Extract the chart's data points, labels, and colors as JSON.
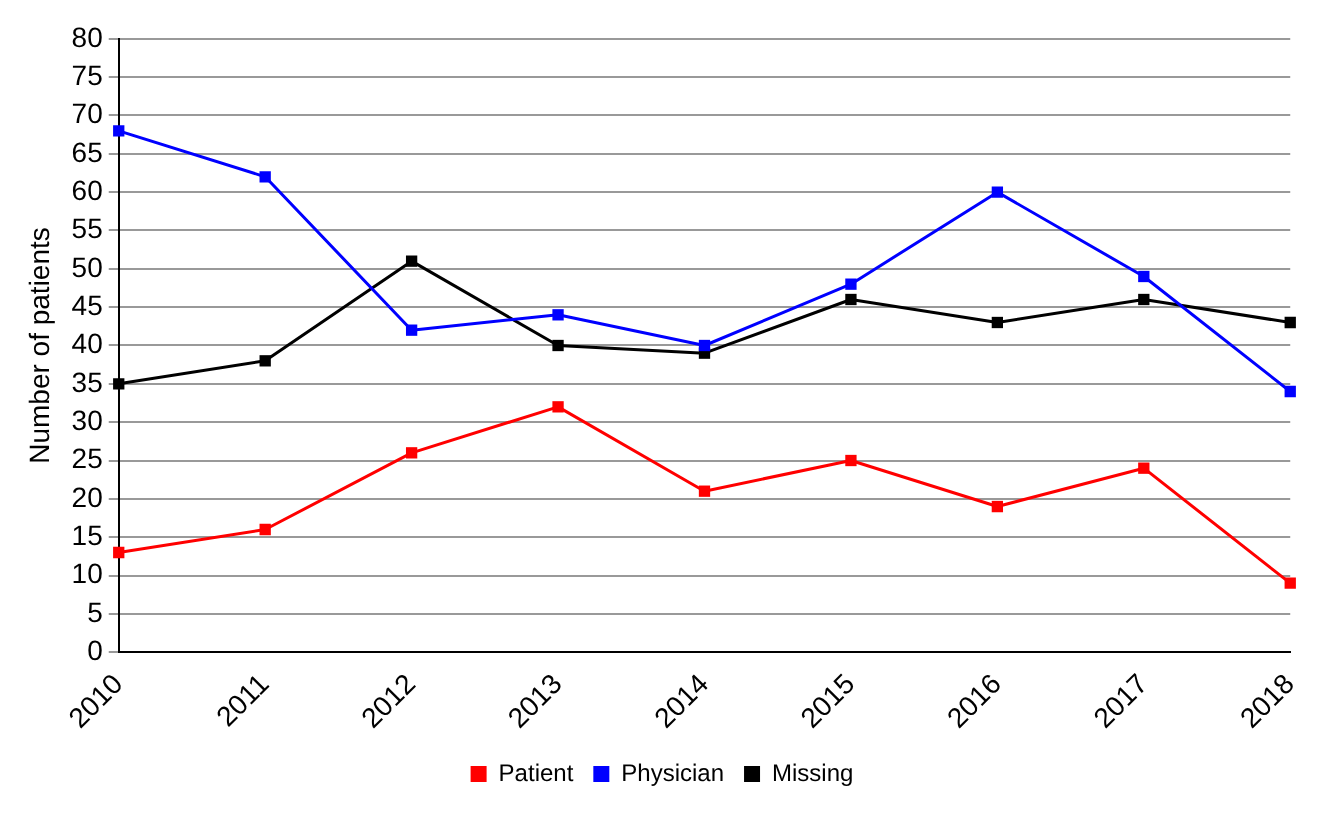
{
  "chart_data": {
    "type": "line",
    "ylabel": "Number of patients",
    "categories": [
      "2010",
      "2011",
      "2012",
      "2013",
      "2014",
      "2015",
      "2016",
      "2017",
      "2018"
    ],
    "series": [
      {
        "name": "Patient",
        "color": "#ff0000",
        "values": [
          13,
          16,
          26,
          32,
          21,
          25,
          19,
          24,
          9
        ]
      },
      {
        "name": "Physician",
        "color": "#0000ff",
        "values": [
          68,
          62,
          42,
          44,
          40,
          48,
          60,
          49,
          34
        ]
      },
      {
        "name": "Missing",
        "color": "#000000",
        "values": [
          35,
          38,
          51,
          40,
          39,
          46,
          43,
          46,
          43
        ]
      }
    ],
    "ylim": [
      0,
      80
    ],
    "yticks": [
      0,
      5,
      10,
      15,
      20,
      25,
      30,
      35,
      40,
      45,
      50,
      55,
      60,
      65,
      70,
      75,
      80
    ],
    "grid": "y",
    "legend": "bottom",
    "marker": "square",
    "line_style": "solid"
  }
}
